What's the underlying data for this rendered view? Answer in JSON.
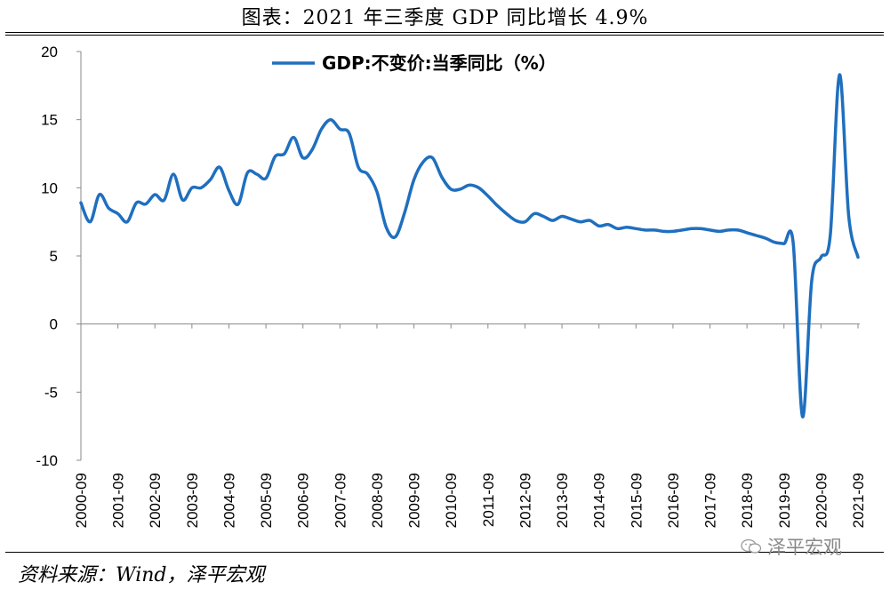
{
  "title": "图表：2021 年三季度 GDP 同比增长 4.9%",
  "source": "资料来源：Wind，泽平宏观",
  "watermark": "泽平宏观",
  "chart_data": {
    "type": "line",
    "legend": "GDP:不变价:当季同比（%）",
    "legend_placement": "top-center",
    "series_color": "#1f6fbf",
    "grid": false,
    "ylim": [
      -10,
      20
    ],
    "yticks": [
      -10,
      -5,
      0,
      5,
      10,
      15,
      20
    ],
    "xtick_labels": [
      "2000-09",
      "2001-09",
      "2002-09",
      "2003-09",
      "2004-09",
      "2005-09",
      "2006-09",
      "2007-09",
      "2008-09",
      "2009-09",
      "2010-09",
      "2011-09",
      "2012-09",
      "2013-09",
      "2014-09",
      "2015-09",
      "2016-09",
      "2017-09",
      "2018-09",
      "2019-09",
      "2020-09",
      "2021-09"
    ],
    "x": [
      "2000-09",
      "2000-12",
      "2001-03",
      "2001-06",
      "2001-09",
      "2001-12",
      "2002-03",
      "2002-06",
      "2002-09",
      "2002-12",
      "2003-03",
      "2003-06",
      "2003-09",
      "2003-12",
      "2004-03",
      "2004-06",
      "2004-09",
      "2004-12",
      "2005-03",
      "2005-06",
      "2005-09",
      "2005-12",
      "2006-03",
      "2006-06",
      "2006-09",
      "2006-12",
      "2007-03",
      "2007-06",
      "2007-09",
      "2007-12",
      "2008-03",
      "2008-06",
      "2008-09",
      "2008-12",
      "2009-03",
      "2009-06",
      "2009-09",
      "2009-12",
      "2010-03",
      "2010-06",
      "2010-09",
      "2010-12",
      "2011-03",
      "2011-06",
      "2011-09",
      "2011-12",
      "2012-03",
      "2012-06",
      "2012-09",
      "2012-12",
      "2013-03",
      "2013-06",
      "2013-09",
      "2013-12",
      "2014-03",
      "2014-06",
      "2014-09",
      "2014-12",
      "2015-03",
      "2015-06",
      "2015-09",
      "2015-12",
      "2016-03",
      "2016-06",
      "2016-09",
      "2016-12",
      "2017-03",
      "2017-06",
      "2017-09",
      "2017-12",
      "2018-03",
      "2018-06",
      "2018-09",
      "2018-12",
      "2019-03",
      "2019-06",
      "2019-09",
      "2019-12",
      "2020-03",
      "2020-06",
      "2020-09",
      "2020-12",
      "2021-03",
      "2021-06",
      "2021-09"
    ],
    "values": [
      8.9,
      7.5,
      9.5,
      8.5,
      8.1,
      7.5,
      8.9,
      8.8,
      9.5,
      9.1,
      11.0,
      9.1,
      10.0,
      10.0,
      10.6,
      11.5,
      9.8,
      8.8,
      11.1,
      11.0,
      10.7,
      12.3,
      12.5,
      13.7,
      12.2,
      12.8,
      14.3,
      15.0,
      14.3,
      14.0,
      11.5,
      11.0,
      9.7,
      7.1,
      6.4,
      8.2,
      10.6,
      11.9,
      12.2,
      10.8,
      9.9,
      9.9,
      10.2,
      10.0,
      9.4,
      8.7,
      8.1,
      7.6,
      7.5,
      8.1,
      7.9,
      7.6,
      7.9,
      7.7,
      7.5,
      7.6,
      7.2,
      7.3,
      7.0,
      7.1,
      7.0,
      6.9,
      6.9,
      6.8,
      6.8,
      6.9,
      7.0,
      7.0,
      6.9,
      6.8,
      6.9,
      6.9,
      6.7,
      6.5,
      6.3,
      6.0,
      5.9,
      5.9,
      -6.8,
      3.2,
      4.9,
      6.5,
      18.3,
      7.9,
      4.9
    ]
  }
}
